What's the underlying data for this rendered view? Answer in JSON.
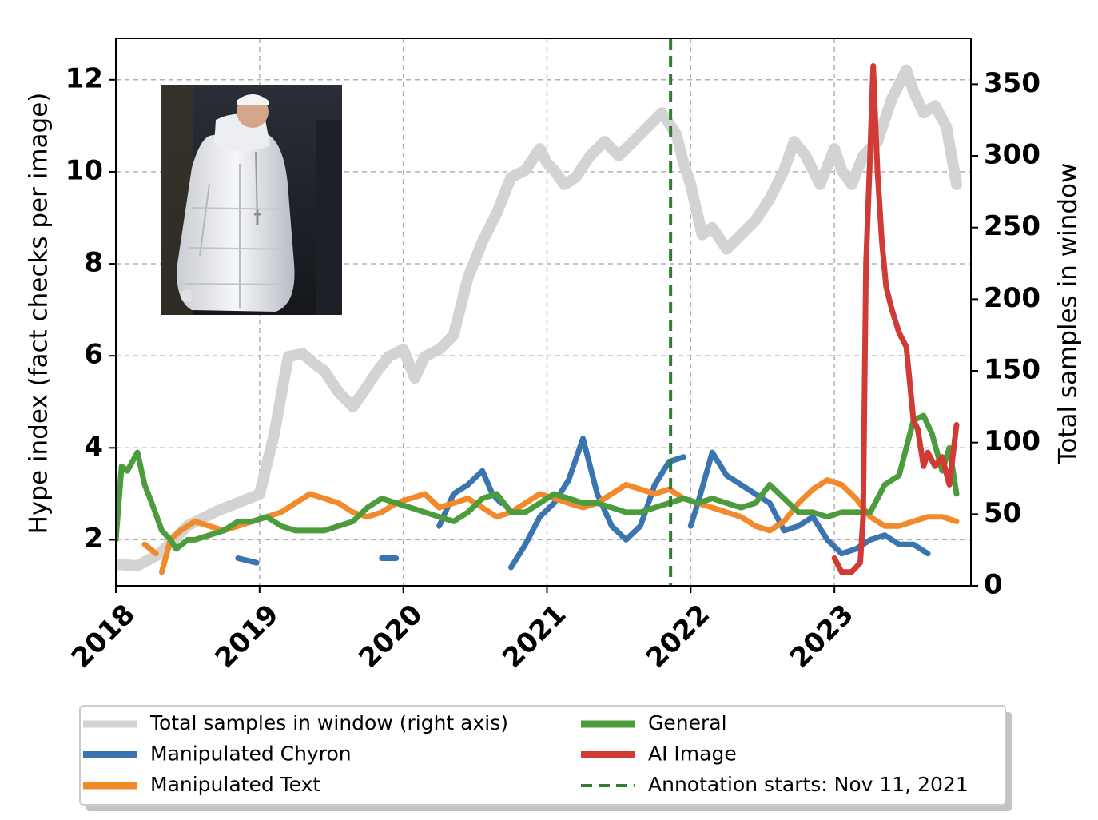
{
  "chart_data": {
    "type": "line",
    "x_axis": {
      "ticks": [
        "2018",
        "2019",
        "2020",
        "2021",
        "2022",
        "2023"
      ],
      "range": [
        2018.0,
        2023.95
      ]
    },
    "y_left": {
      "label": "Hype index (fact checks per image)",
      "ticks": [
        2,
        4,
        6,
        8,
        10,
        12
      ],
      "range": [
        1.0,
        12.9
      ]
    },
    "y_right": {
      "label": "Total samples in window",
      "ticks": [
        0,
        50,
        100,
        150,
        200,
        250,
        300,
        350
      ],
      "range": [
        0,
        382
      ]
    },
    "grid": true,
    "legend_position": "below",
    "annotation": {
      "x": 2021.86,
      "label": "Annotation starts: Nov 11, 2021",
      "color": "#2f7d2f"
    },
    "series": [
      {
        "name": "Total samples in window (right axis)",
        "axis": "right",
        "color": "#d3d3d3",
        "x": [
          2018.0,
          2018.15,
          2018.3,
          2018.5,
          2018.7,
          2018.85,
          2019.0,
          2019.1,
          2019.2,
          2019.3,
          2019.38,
          2019.45,
          2019.55,
          2019.65,
          2019.72,
          2019.82,
          2019.9,
          2020.0,
          2020.08,
          2020.15,
          2020.25,
          2020.35,
          2020.45,
          2020.55,
          2020.65,
          2020.75,
          2020.85,
          2020.95,
          2021.0,
          2021.05,
          2021.12,
          2021.2,
          2021.3,
          2021.4,
          2021.5,
          2021.6,
          2021.7,
          2021.8,
          2021.9,
          2021.95,
          2022.0,
          2022.08,
          2022.15,
          2022.25,
          2022.35,
          2022.45,
          2022.55,
          2022.65,
          2022.72,
          2022.8,
          2022.9,
          2023.0,
          2023.05,
          2023.12,
          2023.2,
          2023.3,
          2023.4,
          2023.5,
          2023.55,
          2023.62,
          2023.7,
          2023.78,
          2023.85
        ],
        "values": [
          15,
          14,
          22,
          42,
          52,
          58,
          64,
          105,
          160,
          162,
          155,
          150,
          135,
          125,
          135,
          150,
          160,
          165,
          145,
          160,
          165,
          175,
          215,
          240,
          260,
          285,
          290,
          305,
          295,
          290,
          280,
          285,
          300,
          310,
          300,
          310,
          320,
          330,
          315,
          295,
          280,
          245,
          250,
          235,
          245,
          255,
          270,
          290,
          310,
          300,
          280,
          305,
          290,
          280,
          300,
          310,
          340,
          360,
          345,
          330,
          335,
          320,
          280
        ]
      },
      {
        "name": "Manipulated Chyron",
        "axis": "left",
        "color": "#3a75b0",
        "segments": [
          {
            "x": [
              2018.85,
              2018.98
            ],
            "values": [
              1.6,
              1.5
            ]
          },
          {
            "x": [
              2019.85,
              2019.95
            ],
            "values": [
              1.6,
              1.6
            ]
          },
          {
            "x": [
              2020.25,
              2020.35,
              2020.45,
              2020.55,
              2020.62,
              2020.68
            ],
            "values": [
              2.3,
              3.0,
              3.2,
              3.5,
              3.0,
              2.8
            ]
          },
          {
            "x": [
              2020.75,
              2020.85,
              2020.95,
              2021.05,
              2021.15,
              2021.25,
              2021.35,
              2021.45,
              2021.55,
              2021.65,
              2021.75,
              2021.85,
              2021.95
            ],
            "values": [
              1.4,
              1.9,
              2.5,
              2.8,
              3.3,
              4.2,
              3.0,
              2.3,
              2.0,
              2.3,
              3.2,
              3.7,
              3.8
            ]
          },
          {
            "x": [
              2022.0,
              2022.05,
              2022.15,
              2022.25,
              2022.35,
              2022.45,
              2022.55,
              2022.65,
              2022.75,
              2022.85,
              2022.95,
              2023.05,
              2023.15,
              2023.25,
              2023.35,
              2023.45,
              2023.55,
              2023.65
            ],
            "values": [
              2.3,
              2.8,
              3.9,
              3.4,
              3.2,
              3.0,
              2.8,
              2.2,
              2.3,
              2.5,
              2.0,
              1.7,
              1.8,
              2.0,
              2.1,
              1.9,
              1.9,
              1.7
            ]
          }
        ]
      },
      {
        "name": "Manipulated Text",
        "axis": "left",
        "color": "#f28a2c",
        "segments": [
          {
            "x": [
              2018.2,
              2018.28
            ],
            "values": [
              1.9,
              1.7
            ]
          },
          {
            "x": [
              2018.32,
              2018.38,
              2018.45,
              2018.55,
              2018.65,
              2018.75,
              2018.85,
              2018.95,
              2019.05,
              2019.15,
              2019.25,
              2019.35,
              2019.45,
              2019.55,
              2019.65,
              2019.75,
              2019.85,
              2019.95,
              2020.05,
              2020.15,
              2020.25,
              2020.35,
              2020.45,
              2020.55,
              2020.65,
              2020.75,
              2020.85,
              2020.95,
              2021.05,
              2021.15,
              2021.25,
              2021.35,
              2021.45,
              2021.55,
              2021.65,
              2021.75,
              2021.85,
              2021.95,
              2022.05,
              2022.15,
              2022.25,
              2022.35,
              2022.45,
              2022.55,
              2022.65,
              2022.75,
              2022.85,
              2022.95,
              2023.05,
              2023.15,
              2023.25,
              2023.35,
              2023.45,
              2023.55,
              2023.65,
              2023.75,
              2023.85
            ],
            "values": [
              1.3,
              2.0,
              2.2,
              2.4,
              2.3,
              2.2,
              2.3,
              2.4,
              2.5,
              2.6,
              2.8,
              3.0,
              2.9,
              2.8,
              2.6,
              2.5,
              2.6,
              2.8,
              2.9,
              3.0,
              2.7,
              2.8,
              2.9,
              2.7,
              2.5,
              2.6,
              2.8,
              3.0,
              2.9,
              2.8,
              2.7,
              2.8,
              3.0,
              3.2,
              3.1,
              3.0,
              3.1,
              2.9,
              2.8,
              2.7,
              2.6,
              2.5,
              2.3,
              2.2,
              2.4,
              2.8,
              3.1,
              3.3,
              3.2,
              2.9,
              2.5,
              2.3,
              2.3,
              2.4,
              2.5,
              2.5,
              2.4
            ]
          }
        ]
      },
      {
        "name": "General",
        "axis": "left",
        "color": "#4c9c3d",
        "segments": [
          {
            "x": [
              2018.0,
              2018.04,
              2018.08,
              2018.15,
              2018.2,
              2018.25,
              2018.32,
              2018.38,
              2018.42,
              2018.5,
              2018.55,
              2018.65,
              2018.75,
              2018.85,
              2018.95,
              2019.05,
              2019.15,
              2019.25,
              2019.35,
              2019.45,
              2019.55,
              2019.65,
              2019.75,
              2019.85,
              2019.95,
              2020.05,
              2020.15,
              2020.25,
              2020.35,
              2020.45,
              2020.55,
              2020.65,
              2020.75,
              2020.85,
              2020.95,
              2021.05,
              2021.15,
              2021.25,
              2021.35,
              2021.45,
              2021.55,
              2021.65,
              2021.75,
              2021.85,
              2021.95,
              2022.05,
              2022.15,
              2022.25,
              2022.35,
              2022.45,
              2022.55,
              2022.65,
              2022.75,
              2022.85,
              2022.95,
              2023.05,
              2023.15,
              2023.25,
              2023.35,
              2023.45,
              2023.55,
              2023.62,
              2023.68,
              2023.75,
              2023.8,
              2023.85
            ],
            "values": [
              2.0,
              3.6,
              3.5,
              3.9,
              3.2,
              2.8,
              2.2,
              2.0,
              1.8,
              2.0,
              2.0,
              2.1,
              2.2,
              2.4,
              2.4,
              2.5,
              2.3,
              2.2,
              2.2,
              2.2,
              2.3,
              2.4,
              2.7,
              2.9,
              2.8,
              2.7,
              2.6,
              2.5,
              2.4,
              2.6,
              2.9,
              3.0,
              2.6,
              2.6,
              2.8,
              3.0,
              2.9,
              2.8,
              2.8,
              2.7,
              2.6,
              2.6,
              2.7,
              2.8,
              2.9,
              2.8,
              2.9,
              2.8,
              2.7,
              2.8,
              3.2,
              2.9,
              2.6,
              2.6,
              2.5,
              2.6,
              2.6,
              2.6,
              3.2,
              3.4,
              4.6,
              4.7,
              4.3,
              3.5,
              4.0,
              3.0
            ]
          }
        ]
      },
      {
        "name": "AI Image",
        "axis": "left",
        "color": "#d03b35",
        "segments": [
          {
            "x": [
              2023.0,
              2023.05,
              2023.12,
              2023.18,
              2023.2,
              2023.22,
              2023.25,
              2023.27,
              2023.28,
              2023.3,
              2023.33,
              2023.36,
              2023.4,
              2023.45,
              2023.5,
              2023.55,
              2023.58,
              2023.62,
              2023.65,
              2023.7,
              2023.75,
              2023.8,
              2023.85
            ],
            "values": [
              1.6,
              1.3,
              1.3,
              1.5,
              2.5,
              8.0,
              10.5,
              12.3,
              11.5,
              10.0,
              8.5,
              7.5,
              7.0,
              6.5,
              6.2,
              4.6,
              4.4,
              3.6,
              3.9,
              3.6,
              3.8,
              3.2,
              4.5
            ]
          }
        ]
      }
    ]
  },
  "legend": {
    "items": [
      {
        "label": "Total samples in window (right axis)",
        "color": "#d3d3d3",
        "style": "solid"
      },
      {
        "label": "Manipulated Chyron",
        "color": "#3a75b0",
        "style": "solid"
      },
      {
        "label": "Manipulated Text",
        "color": "#f28a2c",
        "style": "solid"
      },
      {
        "label": "General",
        "color": "#4c9c3d",
        "style": "solid"
      },
      {
        "label": "AI Image",
        "color": "#d03b35",
        "style": "solid"
      },
      {
        "label": "Annotation starts: Nov 11, 2021",
        "color": "#2f7d2f",
        "style": "dashed"
      }
    ]
  }
}
